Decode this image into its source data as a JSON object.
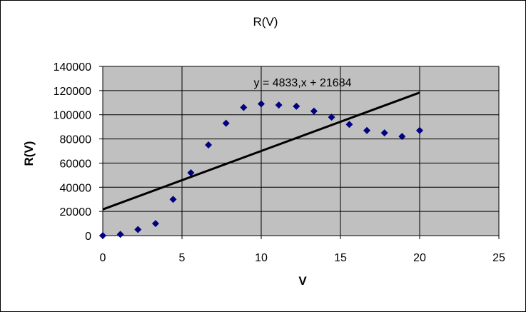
{
  "chart_data": {
    "type": "scatter",
    "title": "R(V)",
    "xlabel": "V",
    "ylabel": "R(V)",
    "xlim": [
      0,
      25
    ],
    "ylim": [
      0,
      140000
    ],
    "x_ticks": [
      0,
      5,
      10,
      15,
      20,
      25
    ],
    "y_ticks": [
      0,
      20000,
      40000,
      60000,
      80000,
      100000,
      120000,
      140000
    ],
    "grid": "horizontal and vertical major gridlines",
    "plot_background": "#c0c0c0",
    "marker_color": "#000080",
    "trendline_color": "#000000",
    "series": [
      {
        "marker": "diamond",
        "x": [
          0,
          1.11,
          2.22,
          3.33,
          4.44,
          5.56,
          6.67,
          7.78,
          8.89,
          10,
          11.11,
          12.22,
          13.33,
          14.44,
          15.56,
          16.67,
          17.78,
          18.89,
          20
        ],
        "y": [
          0,
          1000,
          5000,
          10000,
          30000,
          52000,
          75000,
          93000,
          106000,
          109000,
          108000,
          107000,
          103000,
          98000,
          92000,
          87000,
          85000,
          82000,
          87000
        ]
      }
    ],
    "trendline": {
      "type": "linear",
      "slope": 4833,
      "intercept": 21684,
      "x_range": [
        0,
        20
      ],
      "equation_label": "y = 4833,x + 21684"
    }
  }
}
